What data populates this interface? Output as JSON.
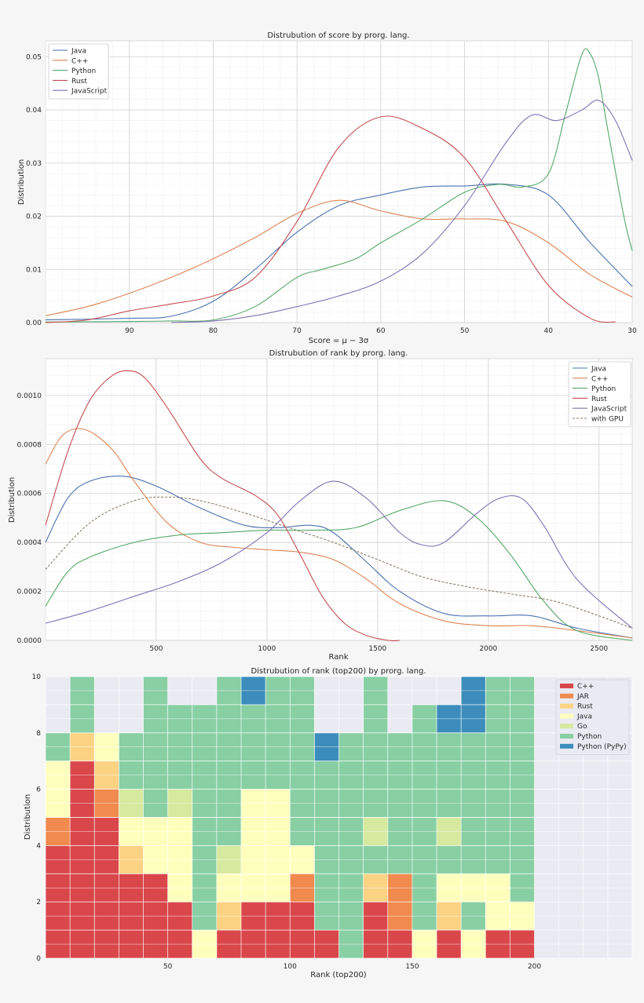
{
  "figure_bg": "#f6f6f6",
  "chart_data": [
    {
      "type": "line",
      "title": "Distrubution of score by prorg. lang.",
      "xlabel": "Score = μ − 3σ",
      "ylabel": "Distribution",
      "xlim": [
        100,
        30
      ],
      "ylim": [
        0,
        0.053
      ],
      "xticks": [
        90,
        80,
        70,
        60,
        50,
        40,
        30
      ],
      "xtick_labels": [
        "90",
        "80",
        "70",
        "60",
        "50",
        "40",
        "30"
      ],
      "yticks": [
        0,
        0.01,
        0.02,
        0.03,
        0.04,
        0.05
      ],
      "ytick_labels": [
        "0.00",
        "0.01",
        "0.02",
        "0.03",
        "0.04",
        "0.05"
      ],
      "legend_loc": "upper left",
      "series": [
        {
          "name": "Java",
          "color": "#4c72b0",
          "x": [
            100,
            90,
            85,
            80,
            75,
            70,
            65,
            60,
            55,
            50,
            45,
            40,
            35,
            30
          ],
          "y": [
            0.0005,
            0.0008,
            0.0012,
            0.004,
            0.01,
            0.017,
            0.022,
            0.024,
            0.0255,
            0.0257,
            0.026,
            0.024,
            0.015,
            0.0068
          ]
        },
        {
          "name": "C++",
          "color": "#dd8452",
          "x": [
            100,
            95,
            90,
            85,
            80,
            75,
            70,
            65,
            60,
            55,
            50,
            45,
            40,
            35,
            30
          ],
          "y": [
            0.0013,
            0.003,
            0.0055,
            0.0085,
            0.012,
            0.016,
            0.0205,
            0.023,
            0.021,
            0.0195,
            0.0195,
            0.019,
            0.015,
            0.009,
            0.0048
          ]
        },
        {
          "name": "Python",
          "color": "#55a868",
          "x": [
            100,
            90,
            85,
            80,
            75,
            70,
            67,
            63,
            60,
            55,
            50,
            46,
            43,
            40,
            38,
            36,
            35,
            34,
            33,
            31,
            30
          ],
          "y": [
            0.0001,
            0.0002,
            0.0003,
            0.0005,
            0.003,
            0.0085,
            0.01,
            0.012,
            0.015,
            0.0195,
            0.0245,
            0.026,
            0.0255,
            0.028,
            0.039,
            0.0505,
            0.0505,
            0.046,
            0.037,
            0.02,
            0.0135
          ]
        },
        {
          "name": "Rust",
          "color": "#c44e52",
          "x": [
            100,
            95,
            90,
            85,
            80,
            75,
            70,
            65,
            60,
            55,
            50,
            45,
            40,
            35,
            32
          ],
          "y": [
            0,
            0.0005,
            0.0022,
            0.0035,
            0.005,
            0.0085,
            0.019,
            0.033,
            0.0387,
            0.0365,
            0.031,
            0.019,
            0.007,
            0.0008,
            0.0001
          ]
        },
        {
          "name": "JavaScript",
          "color": "#8172b3",
          "x": [
            85,
            80,
            75,
            70,
            65,
            60,
            55,
            50,
            45,
            42,
            39,
            36,
            34,
            32,
            30
          ],
          "y": [
            0,
            0.0003,
            0.0013,
            0.003,
            0.005,
            0.0078,
            0.013,
            0.022,
            0.034,
            0.039,
            0.038,
            0.04,
            0.0418,
            0.038,
            0.0305
          ]
        }
      ]
    },
    {
      "type": "line",
      "title": "Distrubution of rank by prorg. lang.",
      "xlabel": "Rank",
      "ylabel": "Distribution",
      "xlim": [
        0,
        2650
      ],
      "ylim": [
        0,
        0.00115
      ],
      "xticks": [
        500,
        1000,
        1500,
        2000,
        2500
      ],
      "xtick_labels": [
        "500",
        "1000",
        "1500",
        "2000",
        "2500"
      ],
      "yticks": [
        0,
        0.0002,
        0.0004,
        0.0006,
        0.0008,
        0.001
      ],
      "ytick_labels": [
        "0.0000",
        "0.0002",
        "0.0004",
        "0.0006",
        "0.0008",
        "0.0010"
      ],
      "legend_loc": "upper right",
      "series": [
        {
          "name": "Java",
          "color": "#4c72b0",
          "x": [
            0,
            100,
            200,
            350,
            500,
            700,
            900,
            1050,
            1200,
            1300,
            1450,
            1600,
            1800,
            2000,
            2200,
            2400,
            2650
          ],
          "y": [
            0.0004,
            0.00058,
            0.00065,
            0.00067,
            0.00063,
            0.00054,
            0.00047,
            0.00046,
            0.00047,
            0.00044,
            0.00032,
            0.0002,
            0.00011,
            0.0001,
            0.0001,
            5e-05,
            1e-05
          ]
        },
        {
          "name": "C++",
          "color": "#dd8452",
          "x": [
            0,
            80,
            180,
            300,
            400,
            550,
            700,
            850,
            1000,
            1150,
            1300,
            1450,
            1600,
            1800,
            2000,
            2200,
            2400,
            2650
          ],
          "y": [
            0.00072,
            0.00084,
            0.00086,
            0.00078,
            0.00065,
            0.00048,
            0.0004,
            0.00038,
            0.00037,
            0.00036,
            0.00033,
            0.00025,
            0.00015,
            8e-05,
            6e-05,
            6e-05,
            4e-05,
            1e-05
          ]
        },
        {
          "name": "Python",
          "color": "#55a868",
          "x": [
            0,
            100,
            200,
            400,
            600,
            800,
            1000,
            1200,
            1400,
            1600,
            1800,
            1950,
            2100,
            2250,
            2400,
            2650
          ],
          "y": [
            0.00014,
            0.00028,
            0.00034,
            0.0004,
            0.00043,
            0.00044,
            0.00045,
            0.00045,
            0.00046,
            0.00053,
            0.00057,
            0.0005,
            0.00035,
            0.00016,
            4e-05,
            0
          ]
        },
        {
          "name": "Rust",
          "color": "#c44e52",
          "x": [
            0,
            100,
            200,
            300,
            380,
            450,
            550,
            700,
            800,
            950,
            1050,
            1150,
            1250,
            1350,
            1450,
            1550,
            1600
          ],
          "y": [
            0.00047,
            0.00077,
            0.00098,
            0.00108,
            0.0011,
            0.00107,
            0.00095,
            0.00074,
            0.00066,
            0.00059,
            0.00051,
            0.00035,
            0.00018,
            7e-05,
            2e-05,
            0,
            0
          ]
        },
        {
          "name": "JavaScript",
          "color": "#8172b3",
          "x": [
            0,
            200,
            400,
            600,
            800,
            1000,
            1150,
            1300,
            1450,
            1600,
            1700,
            1800,
            1950,
            2050,
            2150,
            2250,
            2400,
            2650
          ],
          "y": [
            7e-05,
            0.00012,
            0.00018,
            0.00024,
            0.00032,
            0.00044,
            0.00057,
            0.00065,
            0.00058,
            0.00044,
            0.00039,
            0.0004,
            0.00052,
            0.00058,
            0.00058,
            0.00047,
            0.00025,
            5e-05
          ]
        },
        {
          "name": "with GPU",
          "color": "#8c7b6b",
          "dashed": true,
          "x": [
            0,
            200,
            400,
            550,
            700,
            900,
            1100,
            1300,
            1500,
            1700,
            1900,
            2100,
            2300,
            2500,
            2650
          ],
          "y": [
            0.00029,
            0.00048,
            0.00057,
            0.000585,
            0.00057,
            0.00052,
            0.00046,
            0.0004,
            0.00033,
            0.00026,
            0.00022,
            0.00019,
            0.00016,
            0.0001,
            5e-05
          ]
        }
      ]
    },
    {
      "type": "heatmap",
      "title": "Distrubution of rank (top200) by prorg. lang.",
      "xlabel": "Rank (top200)",
      "ylabel": "Distribution",
      "xlim": [
        0,
        240
      ],
      "ylim": [
        0,
        10
      ],
      "xticks": [
        50,
        100,
        150,
        200
      ],
      "xtick_labels": [
        "50",
        "100",
        "150",
        "200"
      ],
      "yticks": [
        0,
        2,
        4,
        6,
        8,
        10
      ],
      "ytick_labels": [
        "0",
        "2",
        "4",
        "6",
        "8",
        "10"
      ],
      "bin_width": 10,
      "legend_loc": "upper right",
      "categories": [
        {
          "name": "C++",
          "color": "#d9474b"
        },
        {
          "name": "JAR",
          "color": "#f08a4e"
        },
        {
          "name": "Rust",
          "color": "#fcd283"
        },
        {
          "name": "Java",
          "color": "#feffbd"
        },
        {
          "name": "Go",
          "color": "#d6e99e"
        },
        {
          "name": "Python",
          "color": "#88cfa4"
        },
        {
          "name": "Python (PyPy)",
          "color": "#3c8dbc"
        }
      ],
      "columns": [
        [
          "C++",
          "C++",
          "C++",
          "C++",
          "JAR",
          "Java",
          "Java",
          "Python"
        ],
        [
          "C++",
          "C++",
          "C++",
          "C++",
          "C++",
          "C++",
          "C++",
          "Rust",
          "Python",
          "Python"
        ],
        [
          "C++",
          "C++",
          "C++",
          "C++",
          "C++",
          "JAR",
          "Rust",
          "Java"
        ],
        [
          "C++",
          "C++",
          "C++",
          "Rust",
          "Java",
          "Go",
          "Python",
          "Python"
        ],
        [
          "C++",
          "C++",
          "C++",
          "Java",
          "Java",
          "Python",
          "Python",
          "Python",
          "Python",
          "Python"
        ],
        [
          "C++",
          "C++",
          "Java",
          "Java",
          "Java",
          "Go",
          "Python",
          "Python",
          "Python"
        ],
        [
          "Java",
          "Python",
          "Python",
          "Python",
          "Python",
          "Python",
          "Python",
          "Python",
          "Python"
        ],
        [
          "C++",
          "Rust",
          "Java",
          "Go",
          "Python",
          "Python",
          "Python",
          "Python",
          "Python",
          "Python"
        ],
        [
          "C++",
          "C++",
          "Java",
          "Java",
          "Java",
          "Java",
          "Python",
          "Python",
          "Python",
          "Python (PyPy)"
        ],
        [
          "C++",
          "C++",
          "Java",
          "Java",
          "Java",
          "Java",
          "Python",
          "Python",
          "Python",
          "Python"
        ],
        [
          "C++",
          "C++",
          "JAR",
          "Java",
          "Python",
          "Python",
          "Python",
          "Python",
          "Python",
          "Python"
        ],
        [
          "C++",
          "Python",
          "Python",
          "Python",
          "Python",
          "Python",
          "Python",
          "Python (PyPy)"
        ],
        [
          "Python",
          "Python",
          "Python",
          "Python",
          "Python",
          "Python",
          "Python",
          "Python"
        ],
        [
          "C++",
          "C++",
          "Rust",
          "Python",
          "Go",
          "Python",
          "Python",
          "Python",
          "Python",
          "Python"
        ],
        [
          "C++",
          "JAR",
          "JAR",
          "Python",
          "Python",
          "Python",
          "Python",
          "Python"
        ],
        [
          "Java",
          "Python",
          "Python",
          "Python",
          "Python",
          "Python",
          "Python",
          "Python",
          "Python"
        ],
        [
          "C++",
          "Rust",
          "Java",
          "Python",
          "Go",
          "Python",
          "Python",
          "Python",
          "Python (PyPy)"
        ],
        [
          "Java",
          "Python",
          "Java",
          "Python",
          "Python",
          "Python",
          "Python",
          "Python",
          "Python (PyPy)",
          "Python (PyPy)"
        ],
        [
          "C++",
          "Java",
          "Java",
          "Python",
          "Python",
          "Python",
          "Python",
          "Python",
          "Python",
          "Python"
        ],
        [
          "C++",
          "Java",
          "Python",
          "Python",
          "Python",
          "Python",
          "Python",
          "Python",
          "Python",
          "Python"
        ]
      ]
    }
  ]
}
